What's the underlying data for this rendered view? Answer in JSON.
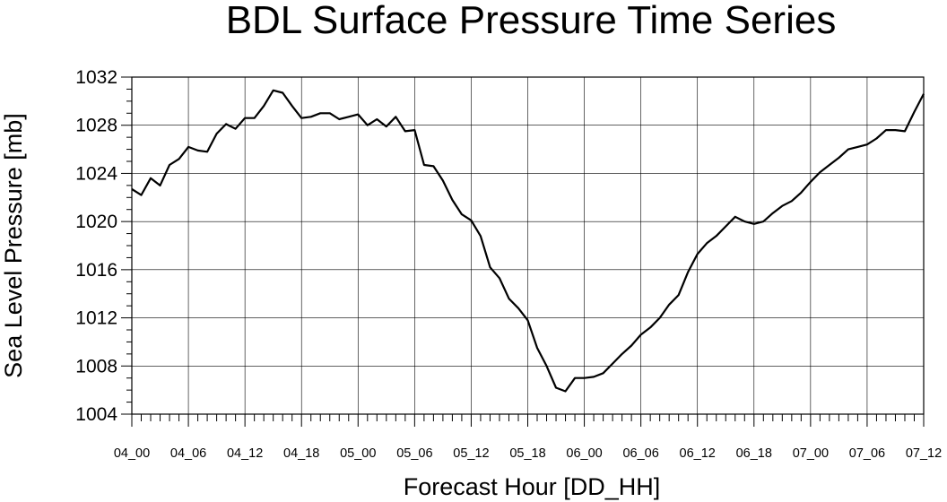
{
  "chart_data": {
    "type": "line",
    "title": "BDL Surface Pressure Time Series",
    "xlabel": "Forecast Hour [DD_HH]",
    "ylabel": "Sea Level Pressure [mb]",
    "ylim": [
      1004,
      1032
    ],
    "yticks": [
      1004,
      1008,
      1012,
      1016,
      1020,
      1024,
      1028,
      1032
    ],
    "x_range_hours": [
      0,
      84
    ],
    "x_minor_step_hours": 1,
    "grid": true,
    "xticks": [
      {
        "hour": 0,
        "label": "04_00"
      },
      {
        "hour": 6,
        "label": "04_06"
      },
      {
        "hour": 12,
        "label": "04_12"
      },
      {
        "hour": 18,
        "label": "04_18"
      },
      {
        "hour": 24,
        "label": "05_00"
      },
      {
        "hour": 30,
        "label": "05_06"
      },
      {
        "hour": 36,
        "label": "05_12"
      },
      {
        "hour": 42,
        "label": "05_18"
      },
      {
        "hour": 48,
        "label": "06_00"
      },
      {
        "hour": 54,
        "label": "06_06"
      },
      {
        "hour": 60,
        "label": "06_12"
      },
      {
        "hour": 66,
        "label": "06_18"
      },
      {
        "hour": 72,
        "label": "07_00"
      },
      {
        "hour": 78,
        "label": "07_06"
      },
      {
        "hour": 84,
        "label": "07_12"
      }
    ],
    "series": [
      {
        "x": [
          0,
          1,
          2,
          3,
          4,
          5,
          6,
          7,
          8,
          9,
          10,
          11,
          12,
          13,
          14,
          15,
          16,
          17,
          18,
          19,
          20,
          21,
          22,
          23,
          24,
          25,
          26,
          27,
          28,
          29,
          30,
          31,
          32,
          33,
          34,
          35,
          36,
          37,
          38,
          39,
          40,
          41,
          42,
          43,
          44,
          45,
          46,
          47,
          48,
          49,
          50,
          51,
          52,
          53,
          54,
          55,
          56,
          57,
          58,
          59,
          60,
          61,
          62,
          63,
          64,
          65,
          66,
          67,
          68,
          69,
          70,
          71,
          72,
          73,
          74,
          75,
          76,
          77,
          78,
          79,
          80,
          81,
          82,
          83,
          84
        ],
        "values": [
          1022.7,
          1022.2,
          1023.6,
          1023.0,
          1024.7,
          1025.2,
          1026.2,
          1025.9,
          1025.8,
          1027.3,
          1028.1,
          1027.7,
          1028.6,
          1028.6,
          1029.6,
          1030.9,
          1030.7,
          1029.6,
          1028.6,
          1028.7,
          1029.0,
          1029.0,
          1028.5,
          1028.7,
          1028.9,
          1028.0,
          1028.5,
          1027.9,
          1028.7,
          1027.5,
          1027.6,
          1024.7,
          1024.6,
          1023.4,
          1021.8,
          1020.6,
          1020.1,
          1018.8,
          1016.2,
          1015.3,
          1013.6,
          1012.8,
          1011.8,
          1009.5,
          1008.0,
          1006.2,
          1005.9,
          1007.0,
          1007.0,
          1007.1,
          1007.4,
          1008.2,
          1009.0,
          1009.7,
          1010.6,
          1011.2,
          1012.0,
          1013.1,
          1013.9,
          1015.8,
          1017.3,
          1018.2,
          1018.8,
          1019.6,
          1020.4,
          1020.0,
          1019.8,
          1020.0,
          1020.7,
          1021.3,
          1021.7,
          1022.4,
          1023.3,
          1024.1,
          1024.7,
          1025.3,
          1026.0,
          1026.2,
          1026.4,
          1026.9,
          1027.6,
          1027.6,
          1027.5,
          1029.1,
          1030.6
        ]
      }
    ]
  }
}
